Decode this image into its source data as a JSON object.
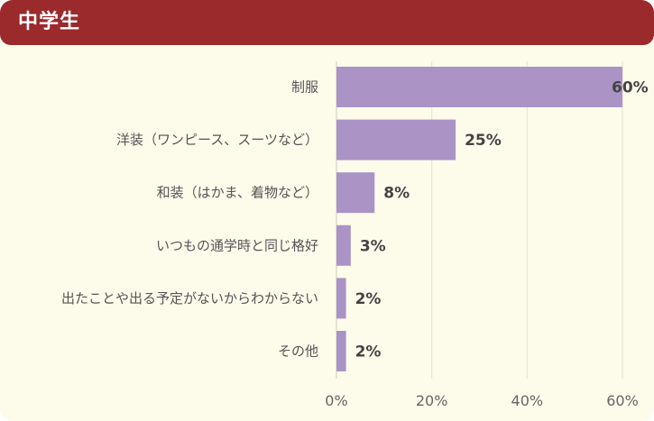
{
  "header": {
    "title": "中学生"
  },
  "colors": {
    "header_bg": "#9b2a2c",
    "panel_bg": "#fdfbea",
    "bar": "#ab93c5",
    "grid": "#e3e1d6"
  },
  "chart_data": {
    "type": "bar",
    "orientation": "horizontal",
    "categories": [
      "制服",
      "洋装（ワンピース、スーツなど）",
      "和装（はかま、着物など）",
      "いつもの通学時と同じ格好",
      "出たことや出る予定がないからわからない",
      "その他"
    ],
    "values": [
      60,
      25,
      8,
      3,
      2,
      2
    ],
    "value_labels": [
      "60%",
      "25%",
      "8%",
      "3%",
      "2%",
      "2%"
    ],
    "xlim": [
      0,
      60
    ],
    "xticks": [
      0,
      20,
      40,
      60
    ],
    "xtick_labels": [
      "0%",
      "20%",
      "40%",
      "60%"
    ],
    "grid": true
  }
}
